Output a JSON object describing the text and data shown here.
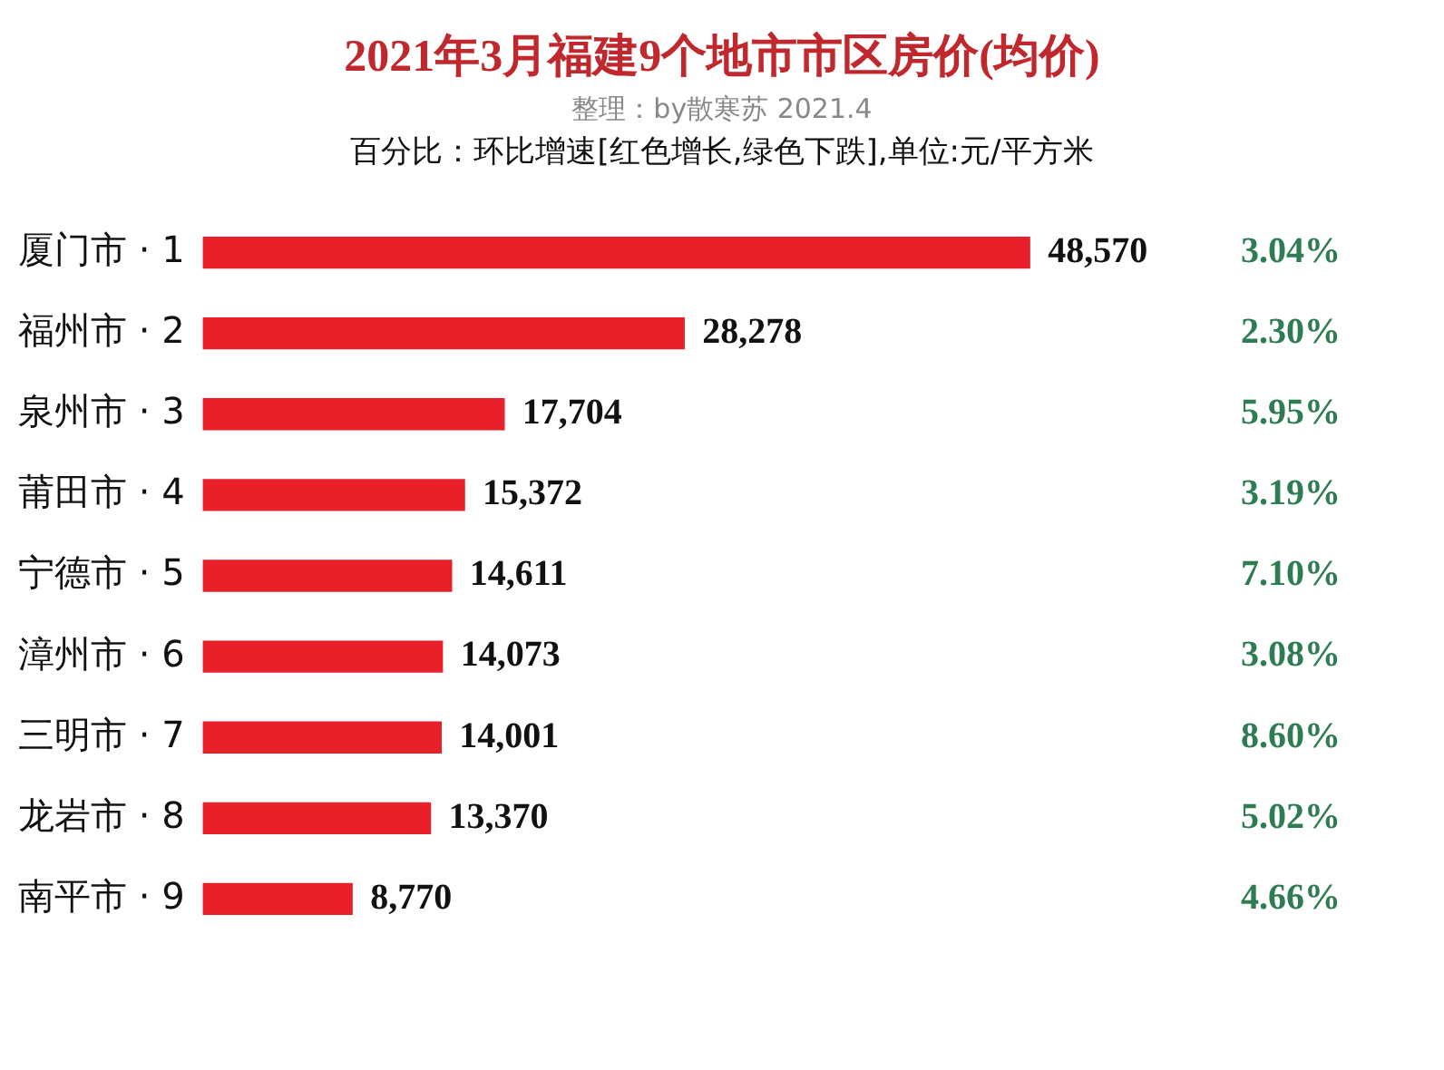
{
  "chart_data": {
    "type": "bar",
    "orientation": "horizontal",
    "title": "2021年3月福建9个地市市区房价(均价)",
    "subtitle": "整理：by散寒苏 2021.4",
    "categories": [
      "厦门市 · 1",
      "福州市 · 2",
      "泉州市 · 3",
      "莆田市 · 4",
      "宁德市 · 5",
      "漳州市 · 6",
      "三明市 · 7",
      "龙岩市 · 8",
      "南平市 · 9"
    ],
    "values": [
      48570,
      28278,
      17704,
      15372,
      14611,
      14073,
      14001,
      13370,
      8770
    ],
    "value_labels": [
      "48,570",
      "28,278",
      "17,704",
      "15,372",
      "14,611",
      "14,073",
      "14,001",
      "13,370",
      "8,770"
    ],
    "color": "#e8202a",
    "tick_labels": "y",
    "grid": false,
    "legend": false,
    "annotations": [
      "百分比：环比增速[红色增长,绿色下跌],单位:元/平方米",
      "3.04%",
      "2.30%",
      "5.95%",
      "3.19%",
      "7.10%",
      "3.08%",
      "8.60%",
      "5.02%",
      "4.66%"
    ]
  }
}
